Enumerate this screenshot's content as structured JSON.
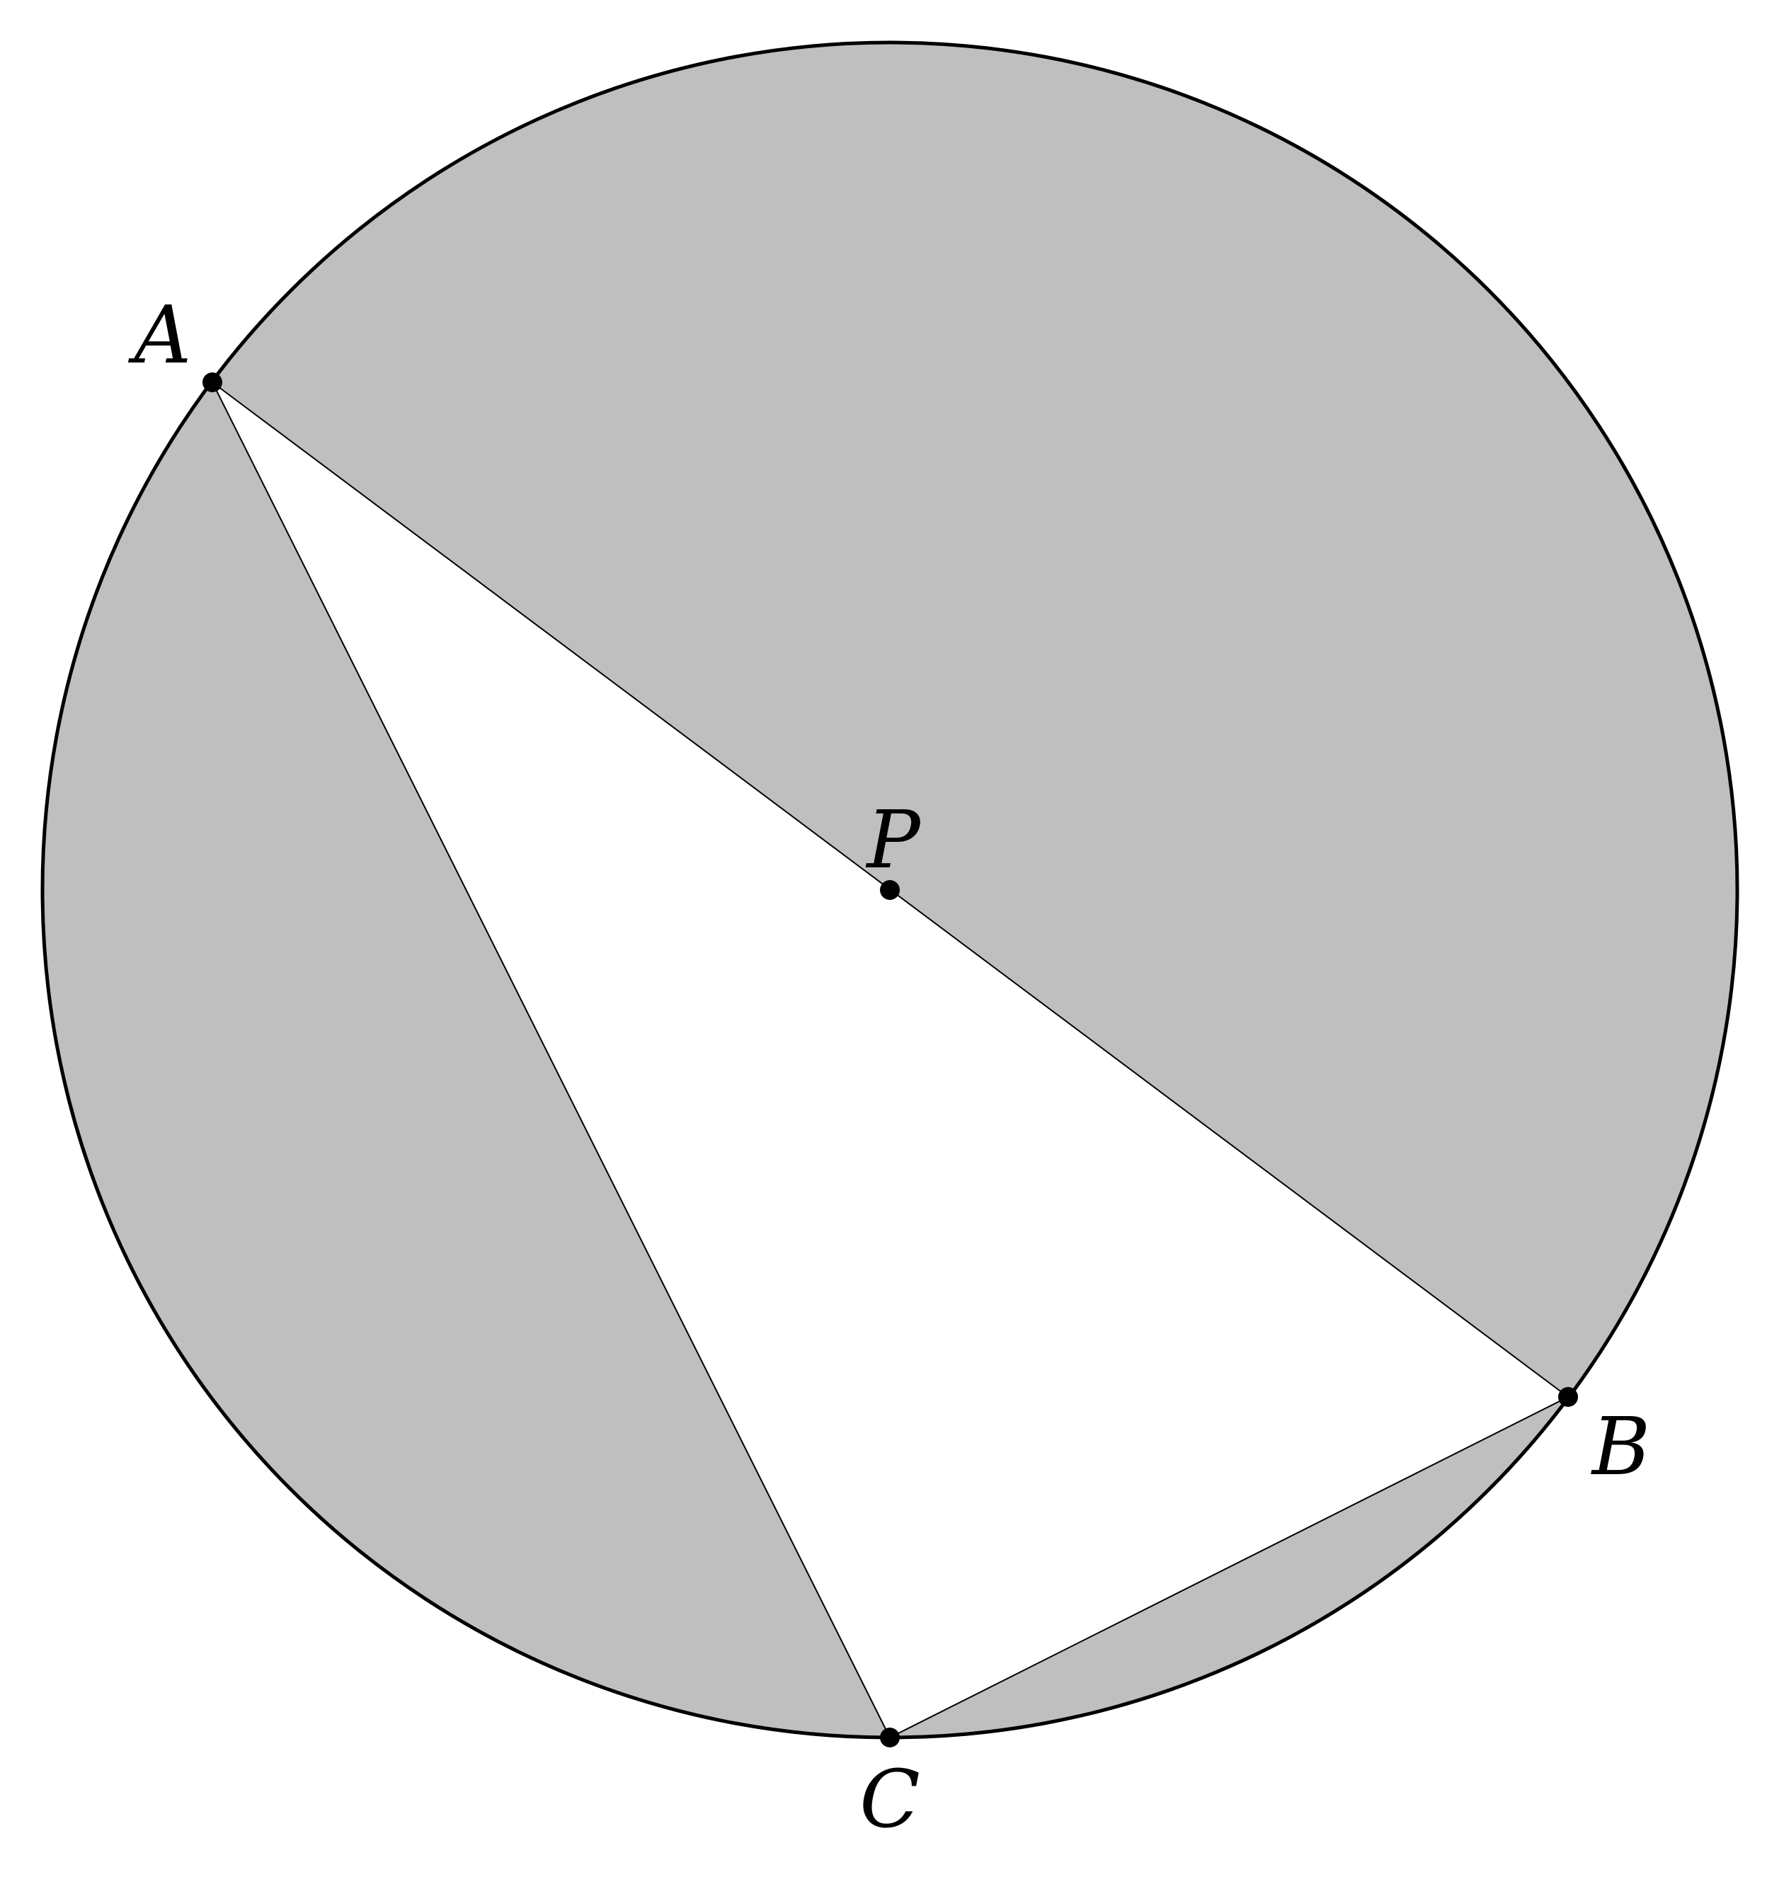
{
  "figure": {
    "colors": {
      "background": "#ffffff",
      "circle_fill": "#bfbfbf",
      "triangle_fill": "#ffffff",
      "stroke": "#000000"
    },
    "points": {
      "A": {
        "label": "A"
      },
      "B": {
        "label": "B"
      },
      "C": {
        "label": "C"
      },
      "P": {
        "label": "P"
      }
    }
  }
}
